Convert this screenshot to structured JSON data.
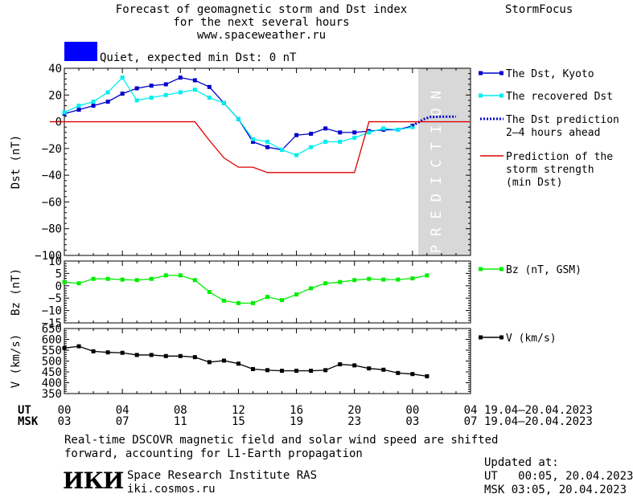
{
  "header": {
    "title_line1": "Forecast of geomagnetic storm and Dst index",
    "title_line2": "for the next several hours",
    "url": "www.spaceweather.ru",
    "brand": "StormFocus",
    "status_color": "#0000ff",
    "status_text": "Quiet, expected min Dst: 0 nT"
  },
  "chart_data": [
    {
      "type": "line",
      "ylabel": "Dst (nT)",
      "ylim": [
        -100,
        40
      ],
      "yticks": [
        "40",
        "20",
        "0",
        "−20",
        "−40",
        "−60",
        "−80",
        "−100"
      ],
      "prediction_label": "PREDICTION",
      "series": [
        {
          "name": "The Dst, Kyoto",
          "color": "#0000cc",
          "x": [
            0,
            1,
            2,
            3,
            4,
            5,
            6,
            7,
            8,
            9,
            10,
            11,
            12,
            13,
            14,
            15,
            16,
            17,
            18,
            19,
            20,
            21,
            22,
            23,
            24
          ],
          "y": [
            6,
            9,
            12,
            15,
            21,
            25,
            27,
            28,
            33,
            31,
            26,
            14,
            2,
            -15,
            -19,
            -21,
            -10,
            -9,
            -5,
            -8,
            -8,
            -7,
            -6,
            -6,
            -3
          ]
        },
        {
          "name": "The recovered Dst",
          "color": "#00eeee",
          "x": [
            0,
            1,
            2,
            3,
            4,
            5,
            6,
            7,
            8,
            9,
            10,
            11,
            12,
            13,
            14,
            15,
            16,
            17,
            18,
            19,
            20,
            21,
            22,
            23,
            24
          ],
          "y": [
            7,
            12,
            15,
            22,
            33,
            16,
            18,
            20,
            22,
            24,
            18,
            14,
            2,
            -13,
            -15,
            -21,
            -25,
            -19,
            -15,
            -15,
            -12,
            -8,
            -5,
            -6,
            -4
          ]
        },
        {
          "name": "The Dst prediction\n2–4 hours ahead",
          "color": "#0000cc",
          "x": [
            24,
            24.4,
            24.8,
            25.2,
            26.0,
            26.8,
            27.0
          ],
          "y": [
            -3,
            -0.5,
            2,
            3.5,
            3.8,
            3.8,
            3.8
          ]
        },
        {
          "name": "Prediction of the\nstorm strength\n(min Dst)",
          "color": "#dd0000",
          "x": [
            -1,
            9,
            10,
            11,
            12,
            13,
            14,
            15,
            20,
            21,
            22,
            28
          ],
          "y": [
            0,
            0,
            -14,
            -27,
            -34,
            -34,
            -38,
            -38,
            -38,
            0,
            0,
            0
          ]
        }
      ]
    },
    {
      "type": "line",
      "ylabel": "Bz (nT)",
      "ylim": [
        -15,
        10
      ],
      "yticks": [
        "10",
        "5",
        "0",
        "−5",
        "−10",
        "−15"
      ],
      "series": [
        {
          "name": "Bz (nT, GSM)",
          "color": "#00ee00",
          "x": [
            0,
            1,
            2,
            3,
            4,
            5,
            6,
            7,
            8,
            9,
            10,
            11,
            12,
            13,
            14,
            15,
            16,
            17,
            18,
            19,
            20,
            21,
            22,
            23,
            24,
            25
          ],
          "y": [
            1.5,
            1,
            2.8,
            2.8,
            2.5,
            2.3,
            2.8,
            4.2,
            4.2,
            2.3,
            -2.5,
            -6,
            -7,
            -7,
            -4.5,
            -5.8,
            -3.5,
            -1,
            1,
            1.5,
            2.3,
            2.8,
            2.5,
            2.5,
            3,
            4.2
          ]
        }
      ]
    },
    {
      "type": "line",
      "ylabel": "V (km/s)",
      "ylim": [
        350,
        650
      ],
      "yticks": [
        "650",
        "600",
        "550",
        "500",
        "450",
        "400",
        "350"
      ],
      "series": [
        {
          "name": "V (km/s)",
          "color": "#000000",
          "x": [
            0,
            1,
            2,
            3,
            4,
            5,
            6,
            7,
            8,
            9,
            10,
            11,
            12,
            13,
            14,
            15,
            16,
            17,
            18,
            19,
            20,
            21,
            22,
            23,
            24,
            25
          ],
          "y": [
            560,
            568,
            545,
            540,
            538,
            528,
            528,
            523,
            523,
            518,
            495,
            502,
            488,
            463,
            458,
            455,
            455,
            455,
            458,
            485,
            480,
            466,
            460,
            445,
            440,
            430
          ]
        }
      ]
    }
  ],
  "time_axis": {
    "ut_label": "UT",
    "msk_label": "MSK",
    "ut_ticks": [
      "00",
      "04",
      "08",
      "12",
      "16",
      "20",
      "00",
      "04"
    ],
    "msk_ticks": [
      "03",
      "07",
      "11",
      "15",
      "19",
      "23",
      "03",
      "07"
    ],
    "ut_range": "19.04–20.04.2023",
    "msk_range": "19.04–20.04.2023"
  },
  "footer": {
    "note_line1": "Real-time DSCOVR magnetic field and solar wind speed are shifted",
    "note_line2": "forward, accounting for L1-Earth propagation",
    "logo_text": "ИКИ",
    "institute": "Space Research Institute RAS",
    "website": "iki.cosmos.ru",
    "updated_label": "Updated at:",
    "updated_ut": "UT   00:05, 20.04.2023",
    "updated_msk": "MSK 03:05, 20.04.2023"
  }
}
